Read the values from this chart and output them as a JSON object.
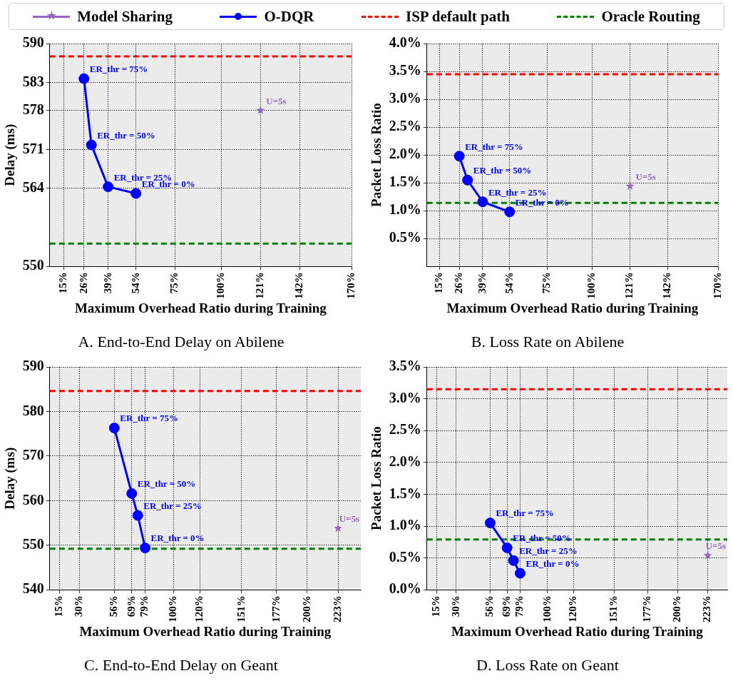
{
  "chart_data": [
    {
      "type": "line",
      "title": "A. End-to-End Delay on Abilene",
      "xlabel": "Maximum Overhead Ratio during Training",
      "ylabel": "Delay (ms)",
      "xlim": [
        7.6,
        170
      ],
      "xticks": [
        {
          "value": 15,
          "label": "15%"
        },
        {
          "value": 26,
          "label": "26%"
        },
        {
          "value": 39,
          "label": "39%"
        },
        {
          "value": 54,
          "label": "54%"
        },
        {
          "value": 75,
          "label": "75%"
        },
        {
          "value": 100,
          "label": "100%"
        },
        {
          "value": 121,
          "label": "121%"
        },
        {
          "value": 142,
          "label": "142%"
        },
        {
          "value": 170,
          "label": "170%"
        }
      ],
      "ylim": [
        550,
        590
      ],
      "yticks": [
        550,
        564,
        571,
        578,
        583,
        590
      ],
      "grid": true,
      "legend": "top",
      "series": [
        {
          "name": "Model Sharing",
          "color": "#9467bd",
          "marker": "star",
          "x": [
            121
          ],
          "values": [
            578
          ]
        },
        {
          "name": "O-DQR",
          "color": "#0000ff",
          "marker": "circle",
          "x": [
            26,
            30,
            39,
            54
          ],
          "values": [
            583.7,
            571.8,
            564.3,
            563.1
          ]
        }
      ],
      "ref_lines": [
        {
          "axis": "y",
          "value": 587.7,
          "label": "ISP default path",
          "color": "#ff0000",
          "line_style": "dashed"
        },
        {
          "axis": "y",
          "value": 554.1,
          "label": "Oracle Routing",
          "color": "#008000",
          "line_style": "dashed"
        }
      ],
      "annotations": [
        {
          "text": "ER_thr = 75%",
          "x": 26,
          "y": 583.7
        },
        {
          "text": "ER_thr = 50%",
          "x": 30,
          "y": 571.8
        },
        {
          "text": "ER_thr = 25%",
          "x": 39,
          "y": 564.3
        },
        {
          "text": "ER_thr = 0%",
          "x": 54,
          "y": 563.1
        },
        {
          "text": "U=5s",
          "x": 121,
          "y": 578
        }
      ]
    },
    {
      "type": "line",
      "title": "B. Loss Rate on Abilene",
      "xlabel": "Maximum Overhead Ratio during Training",
      "ylabel": "Packet Loss Ratio",
      "xlim": [
        8,
        170
      ],
      "xticks": [
        {
          "value": 15,
          "label": "15%"
        },
        {
          "value": 26,
          "label": "26%"
        },
        {
          "value": 39,
          "label": "39%"
        },
        {
          "value": 54,
          "label": "54%"
        },
        {
          "value": 75,
          "label": "75%"
        },
        {
          "value": 100,
          "label": "100%"
        },
        {
          "value": 121,
          "label": "121%"
        },
        {
          "value": 142,
          "label": "142%"
        },
        {
          "value": 170,
          "label": "170%"
        }
      ],
      "ylim": [
        0,
        4
      ],
      "yticks": [
        {
          "value": 0.5,
          "label": "0.5%"
        },
        {
          "value": 1,
          "label": "1.0%"
        },
        {
          "value": 1.5,
          "label": "1.5%"
        },
        {
          "value": 2,
          "label": "2.0%"
        },
        {
          "value": 2.5,
          "label": "2.5%"
        },
        {
          "value": 3,
          "label": "3.0%"
        },
        {
          "value": 3.5,
          "label": "3.5%"
        },
        {
          "value": 4,
          "label": "4.0%"
        }
      ],
      "grid": true,
      "series": [
        {
          "color": "#9467bd",
          "marker": "star",
          "x": [
            121
          ],
          "values": [
            1.44
          ]
        },
        {
          "color": "#0000ff",
          "marker": "circle",
          "x": [
            26,
            30.6,
            39,
            54
          ],
          "values": [
            1.98,
            1.55,
            1.16,
            0.98
          ]
        }
      ],
      "ref_lines": [
        {
          "axis": "y",
          "value": 3.45,
          "color": "#ff0000",
          "line_style": "dashed"
        },
        {
          "axis": "y",
          "value": 1.14,
          "color": "#008000",
          "line_style": "dashed"
        }
      ],
      "annotations": [
        {
          "text": "ER_thr = 75%",
          "x": 26,
          "y": 1.98
        },
        {
          "text": "ER_thr = 50%",
          "x": 30.6,
          "y": 1.55
        },
        {
          "text": "ER_thr = 25%",
          "x": 39,
          "y": 1.16
        },
        {
          "text": "ER_thr = 0%",
          "x": 54,
          "y": 0.98
        },
        {
          "text": "U=5s",
          "x": 121,
          "y": 1.44
        }
      ]
    },
    {
      "type": "line",
      "title": "C. End-to-End Delay on Geant",
      "xlabel": "Maximum Overhead Ratio during Training",
      "ylabel": "Delay (ms)",
      "xlim": [
        7.8,
        240
      ],
      "xticks": [
        {
          "value": 15,
          "label": "15%"
        },
        {
          "value": 30,
          "label": "30%"
        },
        {
          "value": 56,
          "label": "56%"
        },
        {
          "value": 69,
          "label": "69%"
        },
        {
          "value": 79,
          "label": "79%"
        },
        {
          "value": 100,
          "label": "100%"
        },
        {
          "value": 120,
          "label": "120%"
        },
        {
          "value": 151,
          "label": "151%"
        },
        {
          "value": 177,
          "label": "177%"
        },
        {
          "value": 200,
          "label": "200%"
        },
        {
          "value": 223,
          "label": "223%"
        }
      ],
      "ylim": [
        540,
        590
      ],
      "yticks": [
        540,
        550,
        560,
        570,
        580,
        590
      ],
      "grid": true,
      "series": [
        {
          "color": "#9467bd",
          "marker": "star",
          "x": [
            223
          ],
          "values": [
            553.8
          ]
        },
        {
          "color": "#0000ff",
          "marker": "circle",
          "x": [
            56,
            69,
            73.5,
            79
          ],
          "values": [
            576.3,
            561.6,
            556.7,
            549.4
          ]
        }
      ],
      "ref_lines": [
        {
          "axis": "y",
          "value": 584.6,
          "color": "#ff0000",
          "line_style": "dashed"
        },
        {
          "axis": "y",
          "value": 549.2,
          "color": "#008000",
          "line_style": "dashed"
        }
      ],
      "annotations": [
        {
          "text": "ER_thr = 75%",
          "x": 56,
          "y": 576.3
        },
        {
          "text": "ER_thr = 50%",
          "x": 69,
          "y": 561.6
        },
        {
          "text": "ER_thr = 25%",
          "x": 73.5,
          "y": 556.7
        },
        {
          "text": "ER_thr = 0%",
          "x": 79,
          "y": 549.4
        },
        {
          "text": "U=5s",
          "x": 223,
          "y": 553.8
        }
      ]
    },
    {
      "type": "line",
      "title": "D. Loss Rate on Geant",
      "xlabel": "Maximum Overhead Ratio during Training",
      "ylabel": "Packet Loss Ratio",
      "xlim": [
        7.5,
        238
      ],
      "xticks": [
        {
          "value": 15,
          "label": "15%"
        },
        {
          "value": 30,
          "label": "30%"
        },
        {
          "value": 56,
          "label": "56%"
        },
        {
          "value": 69,
          "label": "69%"
        },
        {
          "value": 79,
          "label": "79%"
        },
        {
          "value": 100,
          "label": "100%"
        },
        {
          "value": 120,
          "label": "120%"
        },
        {
          "value": 151,
          "label": "151%"
        },
        {
          "value": 177,
          "label": "177%"
        },
        {
          "value": 200,
          "label": "200%"
        },
        {
          "value": 223,
          "label": "223%"
        }
      ],
      "ylim": [
        0,
        3.5
      ],
      "yticks": [
        {
          "value": 0,
          "label": "0.0%"
        },
        {
          "value": 0.5,
          "label": "0.5%"
        },
        {
          "value": 1,
          "label": "1.0%"
        },
        {
          "value": 1.5,
          "label": "1.5%"
        },
        {
          "value": 2,
          "label": "2.0%"
        },
        {
          "value": 2.5,
          "label": "2.5%"
        },
        {
          "value": 3,
          "label": "3.0%"
        },
        {
          "value": 3.5,
          "label": "3.5%"
        }
      ],
      "grid": true,
      "series": [
        {
          "color": "#9467bd",
          "marker": "star",
          "x": [
            223
          ],
          "values": [
            0.54
          ]
        },
        {
          "color": "#0000ff",
          "marker": "circle",
          "x": [
            56,
            69,
            73.9,
            79
          ],
          "values": [
            1.05,
            0.66,
            0.46,
            0.26
          ]
        }
      ],
      "ref_lines": [
        {
          "axis": "y",
          "value": 3.15,
          "color": "#ff0000",
          "line_style": "dashed"
        },
        {
          "axis": "y",
          "value": 0.79,
          "color": "#008000",
          "line_style": "dashed"
        }
      ],
      "annotations": [
        {
          "text": "ER_thr = 75%",
          "x": 56,
          "y": 1.05
        },
        {
          "text": "ER_thr = 50%",
          "x": 69,
          "y": 0.66
        },
        {
          "text": "ER_thr = 25%",
          "x": 73.9,
          "y": 0.46
        },
        {
          "text": "ER_thr = 0%",
          "x": 79,
          "y": 0.26
        },
        {
          "text": "U=5s",
          "x": 223,
          "y": 0.54
        }
      ]
    }
  ]
}
